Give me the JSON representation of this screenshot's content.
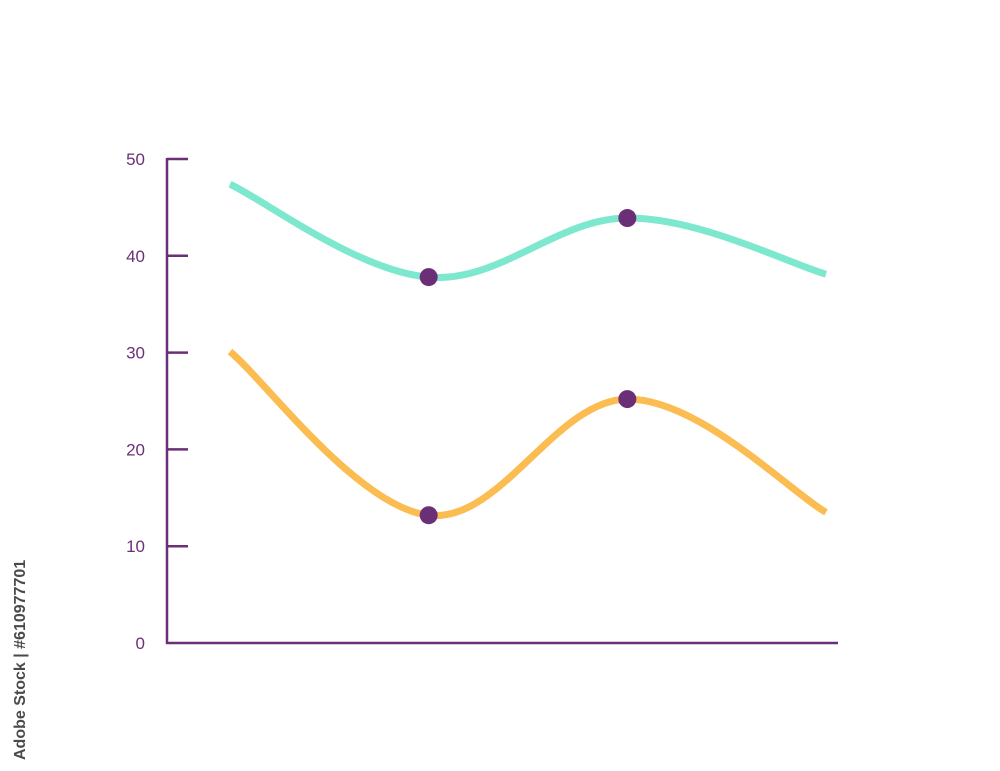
{
  "chart_data": {
    "type": "line",
    "title": "",
    "xlabel": "",
    "ylabel": "",
    "ylim": [
      0,
      50
    ],
    "yticks": [
      0,
      10,
      20,
      30,
      40,
      50
    ],
    "grid": false,
    "legend": "none",
    "x": [
      1,
      2,
      3,
      4
    ],
    "series": [
      {
        "values": [
          47.4,
          37.8,
          43.9,
          38.1
        ],
        "color": "#7ee8cf",
        "markers": [
          1,
          2
        ]
      },
      {
        "values": [
          30.1,
          13.2,
          25.2,
          13.5
        ],
        "color": "#fbbc52",
        "markers": [
          1,
          2
        ]
      }
    ],
    "axis_color": "#6b2f78",
    "marker_color": "#6b2f78"
  },
  "watermark": {
    "text": "Adobe Stock | #610977701"
  }
}
